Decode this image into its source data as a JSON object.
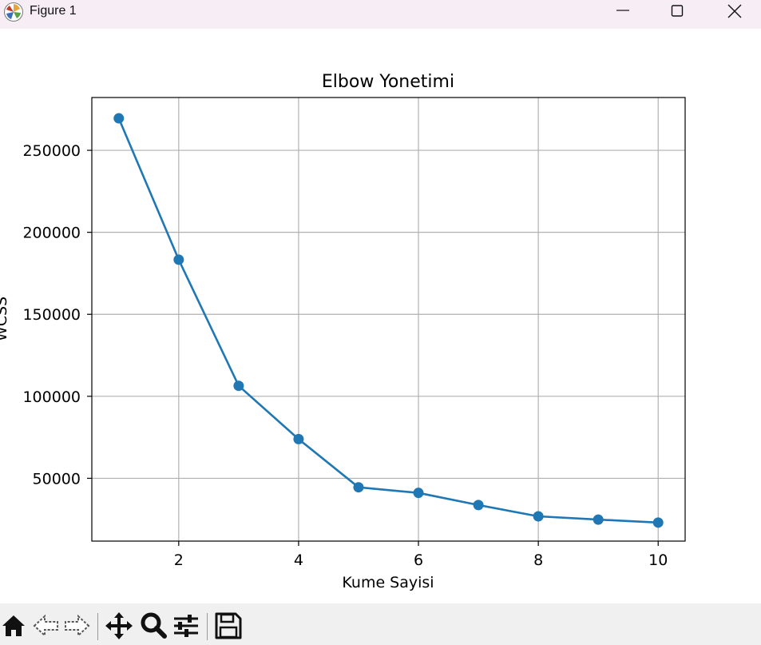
{
  "window": {
    "title": "Figure 1",
    "controls": [
      "minimize",
      "maximize",
      "close"
    ]
  },
  "toolbar": {
    "icons": [
      "home-icon",
      "back-arrow-icon",
      "forward-arrow-icon",
      "pan-move-icon",
      "zoom-magnifier-icon",
      "configure-subplots-icon",
      "save-floppy-icon"
    ]
  },
  "chart_data": {
    "type": "line",
    "title": "Elbow Yonetimi",
    "xlabel": "Kume Sayisi",
    "ylabel": "WCSS",
    "x": [
      1,
      2,
      3,
      4,
      5,
      6,
      7,
      8,
      9,
      10
    ],
    "series": [
      {
        "values": [
          269500,
          183300,
          106400,
          73900,
          44500,
          41100,
          33700,
          26800,
          24800,
          23000
        ],
        "color": "#1f77b4",
        "marker": "circle"
      }
    ],
    "xticks": [
      "2",
      "4",
      "6",
      "8",
      "10"
    ],
    "yticks": [
      "50000",
      "100000",
      "150000",
      "200000",
      "250000"
    ],
    "xlim": [
      0.55,
      10.45
    ],
    "ylim": [
      11700,
      282200
    ],
    "grid": true
  }
}
